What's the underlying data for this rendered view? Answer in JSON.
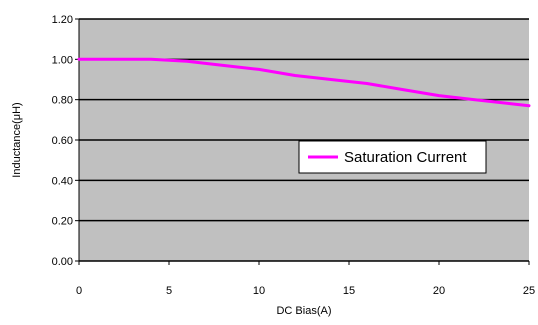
{
  "chart_data": {
    "type": "line",
    "xlabel": "DC Bias(A)",
    "ylabel": "Inductance(μH)",
    "xlim": [
      0,
      25
    ],
    "ylim": [
      0,
      1.2
    ],
    "x_ticks": [
      "0",
      "5",
      "10",
      "15",
      "20",
      "25"
    ],
    "y_ticks": [
      "0.00",
      "0.20",
      "0.40",
      "0.60",
      "0.80",
      "1.00",
      "1.20"
    ],
    "grid": "horizontal",
    "legend_position": "center-right",
    "plot_background": "#c0c0c0",
    "series": [
      {
        "name": "Saturation Current",
        "color": "#ff00ff",
        "x": [
          0,
          2,
          4,
          6,
          8,
          10,
          12,
          14,
          16,
          18,
          20,
          22,
          24,
          25
        ],
        "y": [
          1.0,
          1.0,
          1.0,
          0.99,
          0.97,
          0.95,
          0.92,
          0.9,
          0.88,
          0.85,
          0.82,
          0.8,
          0.78,
          0.77
        ]
      }
    ]
  }
}
